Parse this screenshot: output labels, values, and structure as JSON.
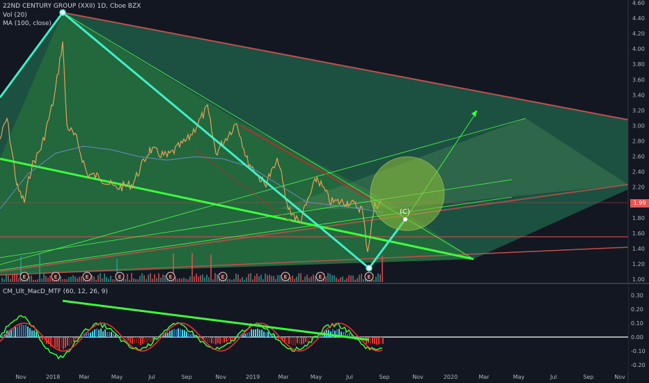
{
  "header": {
    "symbol_line": "22ND CENTURY GROUP (XXII) 1D, Cboe BZX",
    "vol_label": "Vol (20)",
    "ma_label": "MA (100, close)"
  },
  "indicator": {
    "label": "CM_Ult_MacD_MTF (60, 12, 26, 9)"
  },
  "annotation": {
    "wave_label": "(C)"
  },
  "earnings_marker": "E",
  "current_price": "1.99",
  "colors": {
    "background": "#131722",
    "channel_fill": "#1f6b4a",
    "trend_green": "#3cff3c",
    "wave_cyan": "#3ff0c8",
    "resistance_red": "#c0504d",
    "price_badge": "#ef5350"
  },
  "chart_data": [
    {
      "type": "line",
      "title": "22ND CENTURY GROUP (XXII) 1D, Cboe BZX",
      "x_ticks": [
        "Nov",
        "2018",
        "Mar",
        "May",
        "Jul",
        "Sep",
        "Nov",
        "2019",
        "Mar",
        "May",
        "Jul",
        "Sep",
        "Nov",
        "2020",
        "Mar",
        "May",
        "Jul",
        "Sep",
        "Nov"
      ],
      "y_ticks": [
        "4.60",
        "4.40",
        "4.20",
        "4.00",
        "3.80",
        "3.60",
        "3.40",
        "3.20",
        "3.00",
        "2.80",
        "2.60",
        "2.40",
        "2.20",
        "2.00",
        "1.80",
        "1.60",
        "1.40",
        "1.20",
        "1.00"
      ],
      "ylim": [
        1.0,
        4.6
      ],
      "last_price": 1.99,
      "wave_points": [
        {
          "x": "2017-10",
          "y": 3.35
        },
        {
          "x": "2018-01",
          "y": 4.45
        },
        {
          "x": "2019-07",
          "y": 1.12
        },
        {
          "x": "2019-09",
          "y": 1.78
        }
      ]
    },
    {
      "type": "bar",
      "title": "CM_Ult_MacD_MTF (60, 12, 26, 9)",
      "y_ticks": [
        "0.30",
        "0.20",
        "0.10",
        "0.00",
        "-0.10",
        "-0.20"
      ],
      "ylim": [
        -0.24,
        0.34
      ]
    }
  ]
}
